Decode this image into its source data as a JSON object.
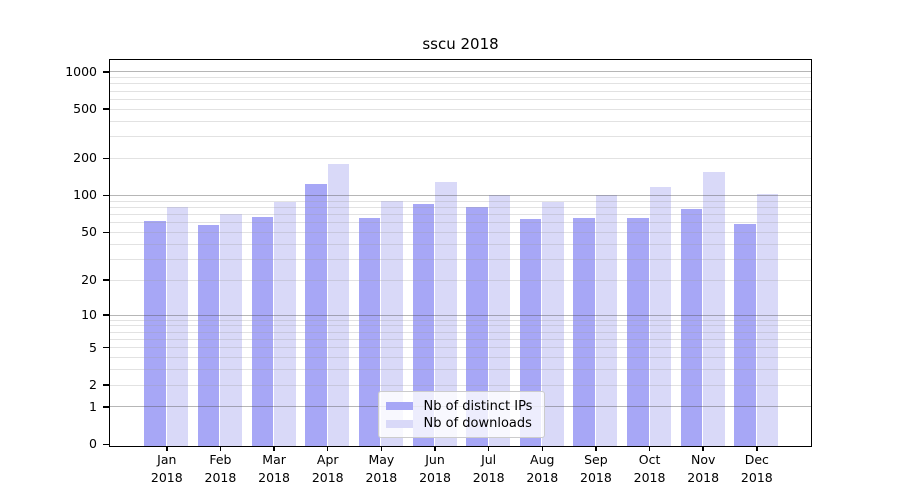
{
  "title": "sscu 2018",
  "chart_data": {
    "type": "bar",
    "title": "sscu 2018",
    "x_months": [
      "Jan",
      "Feb",
      "Mar",
      "Apr",
      "May",
      "Jun",
      "Jul",
      "Aug",
      "Sep",
      "Oct",
      "Nov",
      "Dec"
    ],
    "x_year": "2018",
    "categories": [
      "Jan 2018",
      "Feb 2018",
      "Mar 2018",
      "Apr 2018",
      "May 2018",
      "Jun 2018",
      "Jul 2018",
      "Aug 2018",
      "Sep 2018",
      "Oct 2018",
      "Nov 2018",
      "Dec 2018"
    ],
    "series": [
      {
        "name": "Nb of distinct IPs",
        "color": "#a7a7f6",
        "values": [
          62,
          58,
          68,
          126,
          66,
          86,
          81,
          65,
          66,
          66,
          78,
          59
        ]
      },
      {
        "name": "Nb of downloads",
        "color": "#d9d9f8",
        "values": [
          82,
          72,
          89,
          183,
          91,
          130,
          102,
          89,
          102,
          118,
          156,
          103
        ]
      }
    ],
    "y_ticks": [
      0,
      1,
      2,
      5,
      10,
      20,
      50,
      100,
      200,
      500,
      1000
    ],
    "y_scale": "log1p",
    "ylim": [
      0,
      1230
    ],
    "xlabel": "",
    "ylabel": "",
    "grid": "horizontal major+minor",
    "legend_position": "lower center"
  },
  "colors": {
    "bar_distinct_ips": "#a7a7f6",
    "bar_downloads": "#d9d9f8",
    "grid_major": "#b0b0b0",
    "grid_minor": "#e6e6e6",
    "spine": "#000000",
    "legend_border": "#cccccc",
    "background": "#ffffff"
  }
}
